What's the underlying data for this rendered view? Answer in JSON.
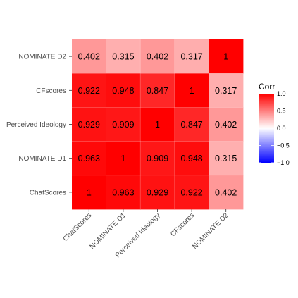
{
  "chart_data": {
    "type": "heatmap",
    "title": "",
    "xlabel": "",
    "ylabel": "",
    "x_categories": [
      "ChatScores",
      "NOMINATE D1",
      "Perceived Ideology",
      "CFscores",
      "NOMINATE D2"
    ],
    "y_categories_top_to_bottom": [
      "NOMINATE D2",
      "CFscores",
      "Perceived Ideology",
      "NOMINATE D1",
      "ChatScores"
    ],
    "values_top_to_bottom": [
      [
        "0.402",
        "0.315",
        "0.402",
        "0.317",
        "1"
      ],
      [
        "0.922",
        "0.948",
        "0.847",
        "1",
        "0.317"
      ],
      [
        "0.929",
        "0.909",
        "1",
        "0.847",
        "0.402"
      ],
      [
        "0.963",
        "1",
        "0.909",
        "0.948",
        "0.315"
      ],
      [
        "1",
        "0.963",
        "0.929",
        "0.922",
        "0.402"
      ]
    ],
    "legend": {
      "title": "Corr",
      "ticks": [
        "1.0",
        "0.5",
        "0.0",
        "−0.5",
        "−1.0"
      ],
      "range": [
        -1,
        1
      ],
      "placement": "right"
    },
    "colors": {
      "low": "#0000ff",
      "mid": "#ffffff",
      "high": "#ff0000"
    },
    "grid": false
  }
}
